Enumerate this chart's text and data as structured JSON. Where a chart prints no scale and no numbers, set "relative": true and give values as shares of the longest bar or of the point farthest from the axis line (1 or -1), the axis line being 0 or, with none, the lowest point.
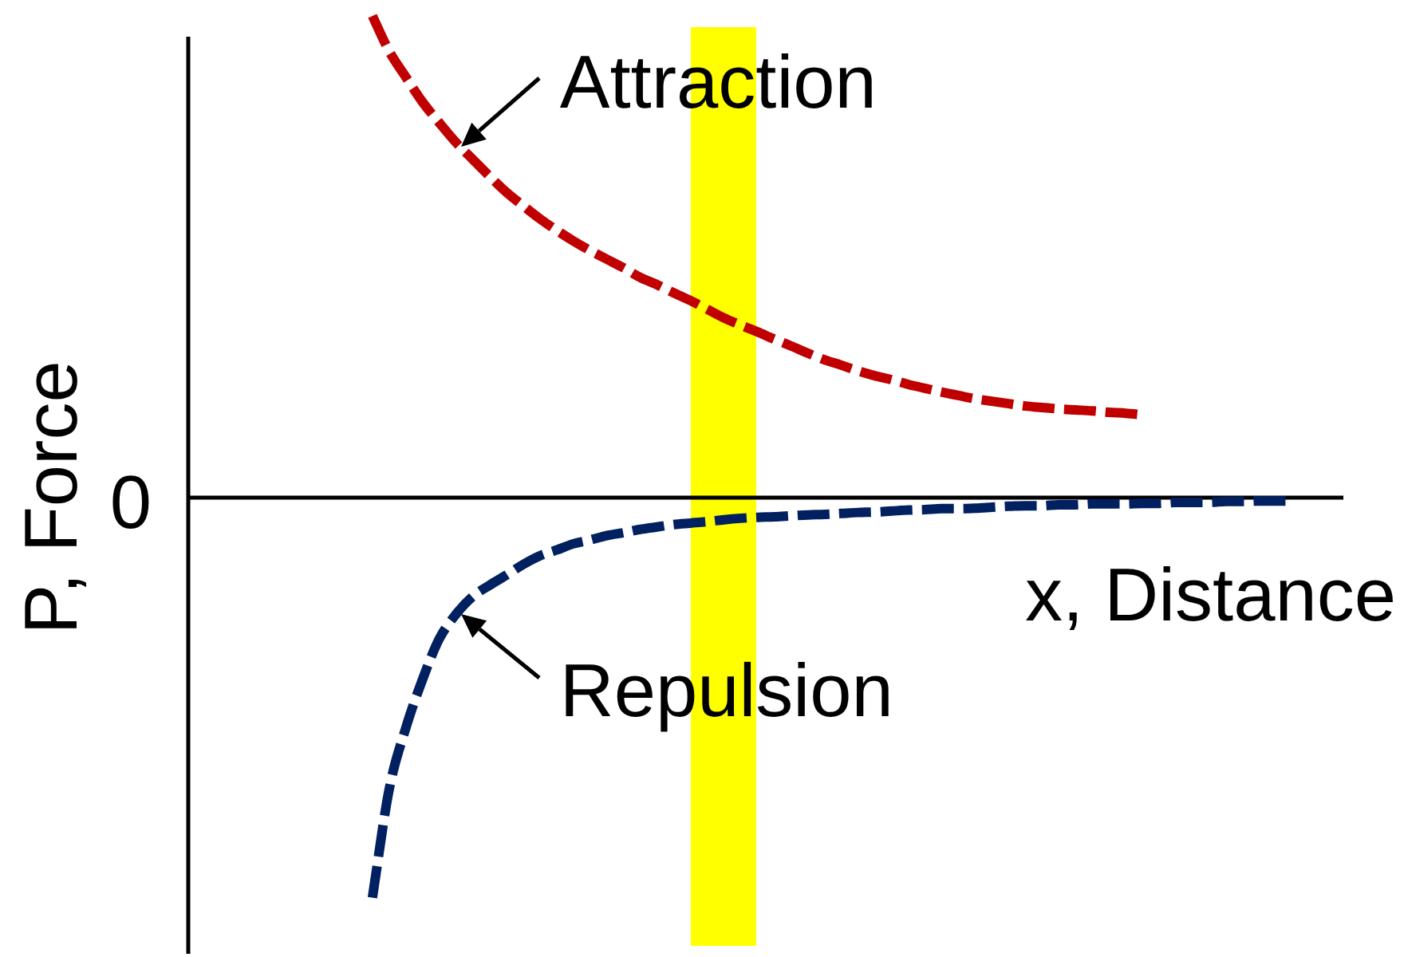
{
  "chart_data": {
    "type": "line",
    "xlabel": "x, Distance",
    "ylabel": "P, Force",
    "relative": true,
    "legend": false,
    "grid": false,
    "marker": "none",
    "line_style": "dashed",
    "categories": [
      null,
      null,
      null,
      null,
      null,
      null,
      null,
      null,
      null,
      null,
      null,
      null,
      null,
      null,
      null,
      null,
      null,
      null,
      null,
      null,
      null,
      null,
      null,
      null,
      null,
      null,
      null,
      null,
      null,
      null,
      null,
      null,
      null,
      null,
      null,
      null,
      null,
      null,
      null,
      null,
      null,
      null,
      null,
      null,
      null,
      null,
      null,
      null,
      null,
      null,
      null,
      null,
      null,
      null,
      null,
      null,
      null,
      null,
      null,
      null,
      null,
      null,
      null,
      null,
      null,
      null,
      null,
      null,
      null,
      null
    ],
    "series": [
      {
        "name": "Attraction",
        "color": "#c00000",
        "values": [
          null,
          null,
          null,
          null,
          null,
          null,
          null,
          null,
          null,
          null,
          null,
          1.0,
          0.927,
          0.873,
          0.821,
          0.778,
          0.737,
          0.702,
          0.667,
          0.634,
          0.606,
          0.579,
          0.555,
          0.533,
          0.513,
          0.495,
          0.477,
          0.457,
          0.442,
          0.425,
          0.409,
          0.391,
          0.373,
          0.358,
          0.344,
          0.329,
          0.315,
          0.3,
          0.286,
          0.275,
          0.263,
          0.253,
          0.245,
          0.235,
          0.227,
          0.219,
          0.212,
          0.205,
          0.2,
          0.195,
          0.19,
          0.187,
          0.184,
          0.182,
          0.18,
          0.177,
          0.175,
          0.172,
          null,
          null,
          null,
          null,
          null,
          null,
          null,
          null,
          null,
          null,
          null,
          null
        ]
      },
      {
        "name": "Repulsion",
        "color": "#002060",
        "values": [
          null,
          null,
          null,
          null,
          null,
          null,
          null,
          null,
          null,
          null,
          null,
          -0.831,
          -0.606,
          -0.478,
          -0.377,
          -0.293,
          -0.242,
          -0.205,
          -0.182,
          -0.161,
          -0.139,
          -0.121,
          -0.109,
          -0.096,
          -0.088,
          -0.079,
          -0.073,
          -0.066,
          -0.061,
          -0.056,
          -0.053,
          -0.05,
          -0.046,
          -0.043,
          -0.041,
          -0.04,
          -0.038,
          -0.036,
          -0.035,
          -0.033,
          -0.031,
          -0.03,
          -0.028,
          -0.026,
          -0.025,
          -0.023,
          -0.023,
          -0.022,
          -0.02,
          -0.018,
          -0.017,
          -0.017,
          -0.015,
          -0.015,
          -0.013,
          -0.013,
          -0.013,
          -0.012,
          -0.012,
          -0.01,
          -0.01,
          -0.01,
          -0.008,
          -0.008,
          -0.007,
          -0.007,
          -0.007,
          null,
          null,
          null
        ]
      }
    ],
    "annotations": [
      "0"
    ]
  }
}
